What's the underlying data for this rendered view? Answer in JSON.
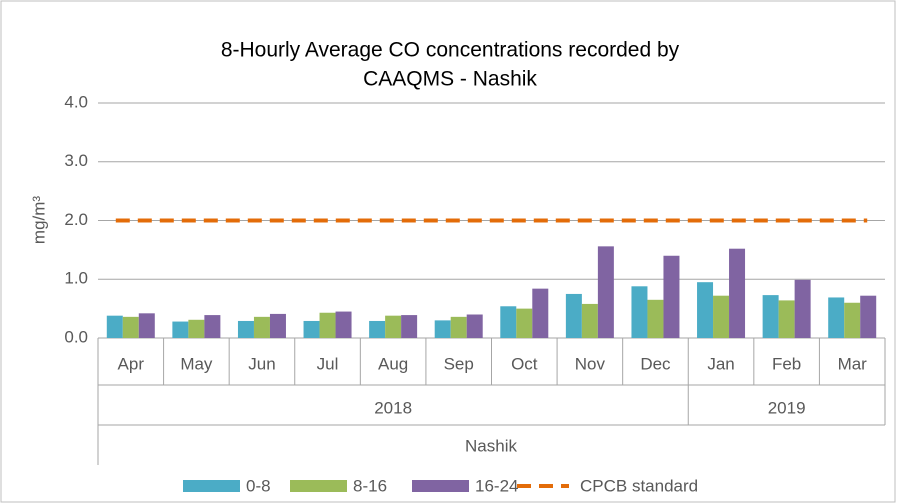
{
  "chart_data": {
    "type": "bar",
    "title": [
      "8-Hourly Average CO concentrations recorded by",
      "CAAQMS - Nashik"
    ],
    "y_label": "mg/m³",
    "x_label": "Nashik",
    "categories": [
      "Apr",
      "May",
      "Jun",
      "Jul",
      "Aug",
      "Sep",
      "Oct",
      "Nov",
      "Dec",
      "Jan",
      "Feb",
      "Mar"
    ],
    "x_groups": [
      "2018",
      null,
      null,
      null,
      null,
      null,
      null,
      null,
      null,
      "2019",
      null,
      null
    ],
    "series": [
      {
        "name": "0-8",
        "color": "#4bacc6",
        "values": [
          0.38,
          0.28,
          0.29,
          0.29,
          0.29,
          0.3,
          0.54,
          0.75,
          0.88,
          0.95,
          0.73,
          0.69
        ]
      },
      {
        "name": "8-16",
        "color": "#9bbb59",
        "values": [
          0.36,
          0.31,
          0.36,
          0.43,
          0.38,
          0.36,
          0.5,
          0.58,
          0.65,
          0.72,
          0.64,
          0.6
        ]
      },
      {
        "name": "16-24",
        "color": "#8064a2",
        "values": [
          0.42,
          0.39,
          0.41,
          0.45,
          0.39,
          0.4,
          0.84,
          1.56,
          1.4,
          1.52,
          0.99,
          0.72
        ]
      },
      {
        "name": "CPCB standard",
        "color": "#e36c09",
        "kind": "line",
        "dashed": true,
        "values": [
          2,
          2,
          2,
          2,
          2,
          2,
          2,
          2,
          2,
          2,
          2,
          2
        ]
      }
    ],
    "ylim": [
      0,
      4
    ],
    "yticks": [
      {
        "value": 0,
        "label": "0.0"
      },
      {
        "value": 1,
        "label": "1.0"
      },
      {
        "value": 2,
        "label": "2.0"
      },
      {
        "value": 3,
        "label": "3.0"
      },
      {
        "value": 4,
        "label": "4.0"
      }
    ],
    "grid": true,
    "legend": "bottom"
  }
}
